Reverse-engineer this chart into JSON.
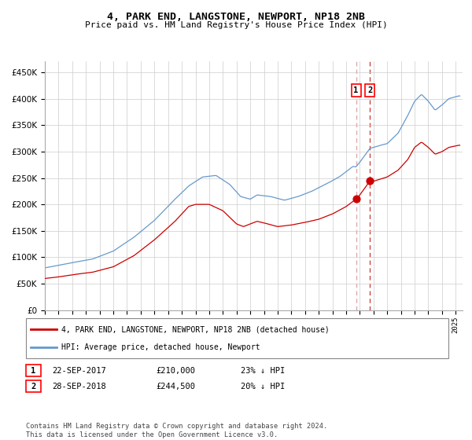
{
  "title": "4, PARK END, LANGSTONE, NEWPORT, NP18 2NB",
  "subtitle": "Price paid vs. HM Land Registry's House Price Index (HPI)",
  "legend1": "4, PARK END, LANGSTONE, NEWPORT, NP18 2NB (detached house)",
  "legend2": "HPI: Average price, detached house, Newport",
  "transaction1_date": "22-SEP-2017",
  "transaction1_price": "£210,000",
  "transaction1_hpi": "23% ↓ HPI",
  "transaction2_date": "28-SEP-2018",
  "transaction2_price": "£244,500",
  "transaction2_hpi": "20% ↓ HPI",
  "footer": "Contains HM Land Registry data © Crown copyright and database right 2024.\nThis data is licensed under the Open Government Licence v3.0.",
  "hpi_color": "#6699cc",
  "property_color": "#cc0000",
  "transaction_dot_color": "#cc0000",
  "vline1_color": "#ddaaaa",
  "vline2_color": "#cc4444",
  "ylim": [
    0,
    470000
  ],
  "yticks": [
    0,
    50000,
    100000,
    150000,
    200000,
    250000,
    300000,
    350000,
    400000,
    450000
  ],
  "transaction1_year": 2017.72,
  "transaction2_year": 2018.74,
  "transaction1_value": 210000,
  "transaction2_value": 244500,
  "xstart": 1995,
  "xend": 2025.5
}
